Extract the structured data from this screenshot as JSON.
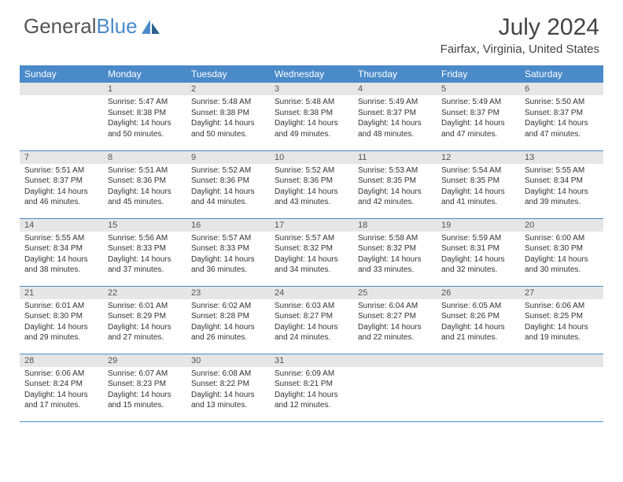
{
  "logo": {
    "text_gray": "General",
    "text_blue": "Blue"
  },
  "title": "July 2024",
  "location": "Fairfax, Virginia, United States",
  "colors": {
    "header_bg": "#4a8ac9",
    "header_text": "#ffffff",
    "daynum_bg": "#e6e6e6",
    "row_border": "#4a8ac9",
    "body_text": "#333333",
    "page_bg": "#ffffff"
  },
  "weekdays": [
    "Sunday",
    "Monday",
    "Tuesday",
    "Wednesday",
    "Thursday",
    "Friday",
    "Saturday"
  ],
  "cells": [
    {
      "day": "",
      "sunrise": "",
      "sunset": "",
      "daylight": ""
    },
    {
      "day": "1",
      "sunrise": "Sunrise: 5:47 AM",
      "sunset": "Sunset: 8:38 PM",
      "daylight": "Daylight: 14 hours and 50 minutes."
    },
    {
      "day": "2",
      "sunrise": "Sunrise: 5:48 AM",
      "sunset": "Sunset: 8:38 PM",
      "daylight": "Daylight: 14 hours and 50 minutes."
    },
    {
      "day": "3",
      "sunrise": "Sunrise: 5:48 AM",
      "sunset": "Sunset: 8:38 PM",
      "daylight": "Daylight: 14 hours and 49 minutes."
    },
    {
      "day": "4",
      "sunrise": "Sunrise: 5:49 AM",
      "sunset": "Sunset: 8:37 PM",
      "daylight": "Daylight: 14 hours and 48 minutes."
    },
    {
      "day": "5",
      "sunrise": "Sunrise: 5:49 AM",
      "sunset": "Sunset: 8:37 PM",
      "daylight": "Daylight: 14 hours and 47 minutes."
    },
    {
      "day": "6",
      "sunrise": "Sunrise: 5:50 AM",
      "sunset": "Sunset: 8:37 PM",
      "daylight": "Daylight: 14 hours and 47 minutes."
    },
    {
      "day": "7",
      "sunrise": "Sunrise: 5:51 AM",
      "sunset": "Sunset: 8:37 PM",
      "daylight": "Daylight: 14 hours and 46 minutes."
    },
    {
      "day": "8",
      "sunrise": "Sunrise: 5:51 AM",
      "sunset": "Sunset: 8:36 PM",
      "daylight": "Daylight: 14 hours and 45 minutes."
    },
    {
      "day": "9",
      "sunrise": "Sunrise: 5:52 AM",
      "sunset": "Sunset: 8:36 PM",
      "daylight": "Daylight: 14 hours and 44 minutes."
    },
    {
      "day": "10",
      "sunrise": "Sunrise: 5:52 AM",
      "sunset": "Sunset: 8:36 PM",
      "daylight": "Daylight: 14 hours and 43 minutes."
    },
    {
      "day": "11",
      "sunrise": "Sunrise: 5:53 AM",
      "sunset": "Sunset: 8:35 PM",
      "daylight": "Daylight: 14 hours and 42 minutes."
    },
    {
      "day": "12",
      "sunrise": "Sunrise: 5:54 AM",
      "sunset": "Sunset: 8:35 PM",
      "daylight": "Daylight: 14 hours and 41 minutes."
    },
    {
      "day": "13",
      "sunrise": "Sunrise: 5:55 AM",
      "sunset": "Sunset: 8:34 PM",
      "daylight": "Daylight: 14 hours and 39 minutes."
    },
    {
      "day": "14",
      "sunrise": "Sunrise: 5:55 AM",
      "sunset": "Sunset: 8:34 PM",
      "daylight": "Daylight: 14 hours and 38 minutes."
    },
    {
      "day": "15",
      "sunrise": "Sunrise: 5:56 AM",
      "sunset": "Sunset: 8:33 PM",
      "daylight": "Daylight: 14 hours and 37 minutes."
    },
    {
      "day": "16",
      "sunrise": "Sunrise: 5:57 AM",
      "sunset": "Sunset: 8:33 PM",
      "daylight": "Daylight: 14 hours and 36 minutes."
    },
    {
      "day": "17",
      "sunrise": "Sunrise: 5:57 AM",
      "sunset": "Sunset: 8:32 PM",
      "daylight": "Daylight: 14 hours and 34 minutes."
    },
    {
      "day": "18",
      "sunrise": "Sunrise: 5:58 AM",
      "sunset": "Sunset: 8:32 PM",
      "daylight": "Daylight: 14 hours and 33 minutes."
    },
    {
      "day": "19",
      "sunrise": "Sunrise: 5:59 AM",
      "sunset": "Sunset: 8:31 PM",
      "daylight": "Daylight: 14 hours and 32 minutes."
    },
    {
      "day": "20",
      "sunrise": "Sunrise: 6:00 AM",
      "sunset": "Sunset: 8:30 PM",
      "daylight": "Daylight: 14 hours and 30 minutes."
    },
    {
      "day": "21",
      "sunrise": "Sunrise: 6:01 AM",
      "sunset": "Sunset: 8:30 PM",
      "daylight": "Daylight: 14 hours and 29 minutes."
    },
    {
      "day": "22",
      "sunrise": "Sunrise: 6:01 AM",
      "sunset": "Sunset: 8:29 PM",
      "daylight": "Daylight: 14 hours and 27 minutes."
    },
    {
      "day": "23",
      "sunrise": "Sunrise: 6:02 AM",
      "sunset": "Sunset: 8:28 PM",
      "daylight": "Daylight: 14 hours and 26 minutes."
    },
    {
      "day": "24",
      "sunrise": "Sunrise: 6:03 AM",
      "sunset": "Sunset: 8:27 PM",
      "daylight": "Daylight: 14 hours and 24 minutes."
    },
    {
      "day": "25",
      "sunrise": "Sunrise: 6:04 AM",
      "sunset": "Sunset: 8:27 PM",
      "daylight": "Daylight: 14 hours and 22 minutes."
    },
    {
      "day": "26",
      "sunrise": "Sunrise: 6:05 AM",
      "sunset": "Sunset: 8:26 PM",
      "daylight": "Daylight: 14 hours and 21 minutes."
    },
    {
      "day": "27",
      "sunrise": "Sunrise: 6:06 AM",
      "sunset": "Sunset: 8:25 PM",
      "daylight": "Daylight: 14 hours and 19 minutes."
    },
    {
      "day": "28",
      "sunrise": "Sunrise: 6:06 AM",
      "sunset": "Sunset: 8:24 PM",
      "daylight": "Daylight: 14 hours and 17 minutes."
    },
    {
      "day": "29",
      "sunrise": "Sunrise: 6:07 AM",
      "sunset": "Sunset: 8:23 PM",
      "daylight": "Daylight: 14 hours and 15 minutes."
    },
    {
      "day": "30",
      "sunrise": "Sunrise: 6:08 AM",
      "sunset": "Sunset: 8:22 PM",
      "daylight": "Daylight: 14 hours and 13 minutes."
    },
    {
      "day": "31",
      "sunrise": "Sunrise: 6:09 AM",
      "sunset": "Sunset: 8:21 PM",
      "daylight": "Daylight: 14 hours and 12 minutes."
    },
    {
      "day": "",
      "sunrise": "",
      "sunset": "",
      "daylight": ""
    },
    {
      "day": "",
      "sunrise": "",
      "sunset": "",
      "daylight": ""
    },
    {
      "day": "",
      "sunrise": "",
      "sunset": "",
      "daylight": ""
    }
  ]
}
